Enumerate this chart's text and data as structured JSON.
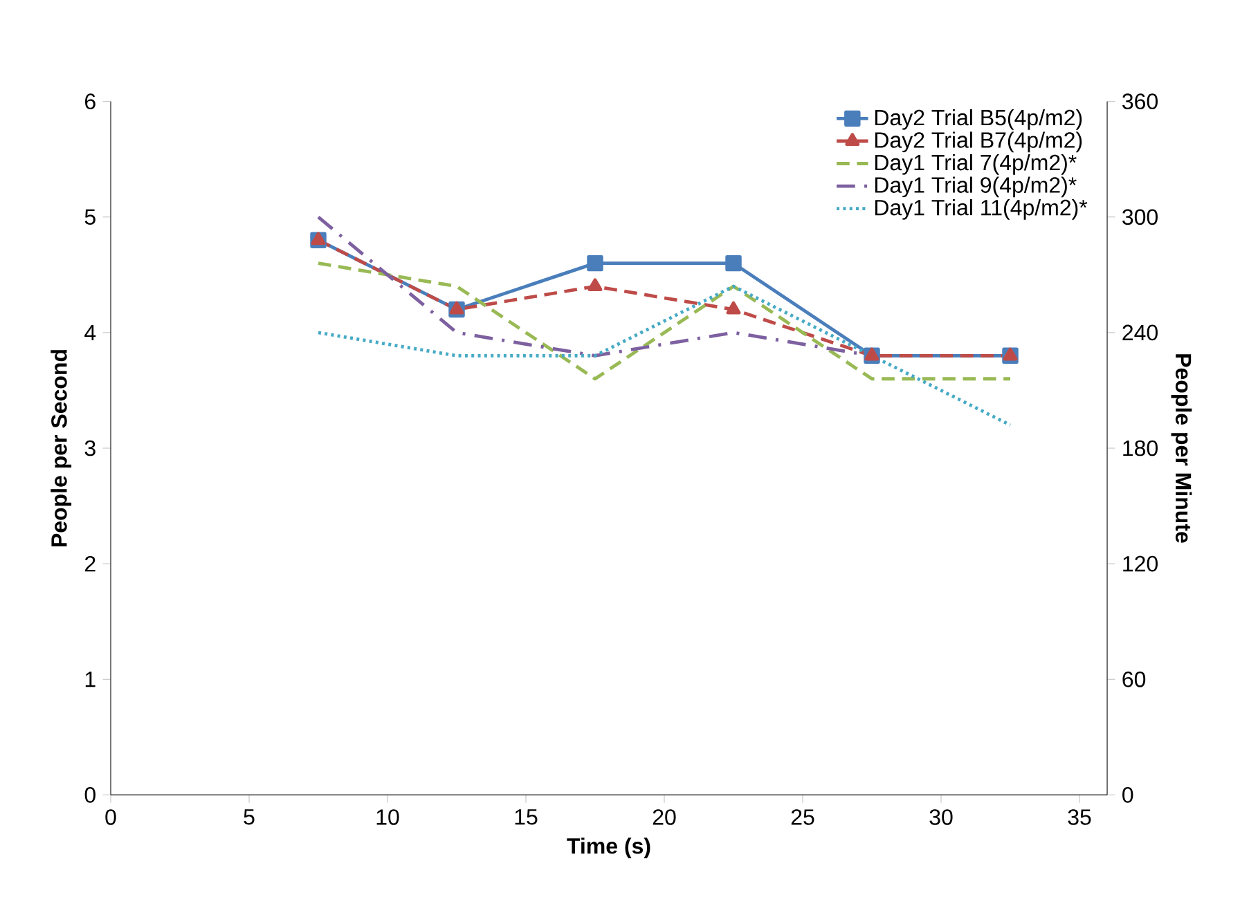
{
  "chart_data": {
    "type": "line",
    "xlabel": "Time (s)",
    "ylabel": "People per Second",
    "y2label": "People per Minute",
    "x": [
      7.5,
      12.5,
      17.5,
      22.5,
      27.5,
      32.5
    ],
    "series": [
      {
        "name": "Day2 Trial B5(4p/m2)",
        "color": "#4a7ebb",
        "values": [
          4.8,
          4.2,
          4.6,
          4.6,
          3.8,
          3.8
        ],
        "marker": "square",
        "line_style": "solid"
      },
      {
        "name": "Day2 Trial B7(4p/m2)",
        "color": "#be4b48",
        "values": [
          4.8,
          4.2,
          4.4,
          4.2,
          3.8,
          3.8
        ],
        "marker": "triangle",
        "line_style": "dashed"
      },
      {
        "name": "Day1 Trial 7(4p/m2)*",
        "color": "#98b954",
        "values": [
          4.6,
          4.4,
          3.6,
          4.4,
          3.6,
          3.6
        ],
        "marker": "none",
        "line_style": "dashed"
      },
      {
        "name": "Day1 Trial 9(4p/m2)*",
        "color": "#7d60a0",
        "values": [
          5.0,
          4.0,
          3.8,
          4.0,
          3.8,
          null
        ],
        "marker": "none",
        "line_style": "dashdot"
      },
      {
        "name": "Day1 Trial 11(4p/m2)*",
        "color": "#46aac5",
        "values": [
          4.0,
          3.8,
          3.8,
          4.4,
          3.8,
          3.2
        ],
        "marker": "none",
        "line_style": "dotted"
      }
    ],
    "xlim": [
      0,
      36
    ],
    "xticks": [
      0,
      5,
      10,
      15,
      20,
      25,
      30,
      35
    ],
    "ylim": [
      0,
      6
    ],
    "yticks": [
      0,
      1,
      2,
      3,
      4,
      5,
      6
    ],
    "y2lim": [
      0,
      360
    ],
    "y2ticks": [
      0,
      60,
      120,
      180,
      240,
      300,
      360
    ],
    "grid": false,
    "legend": "top right"
  }
}
